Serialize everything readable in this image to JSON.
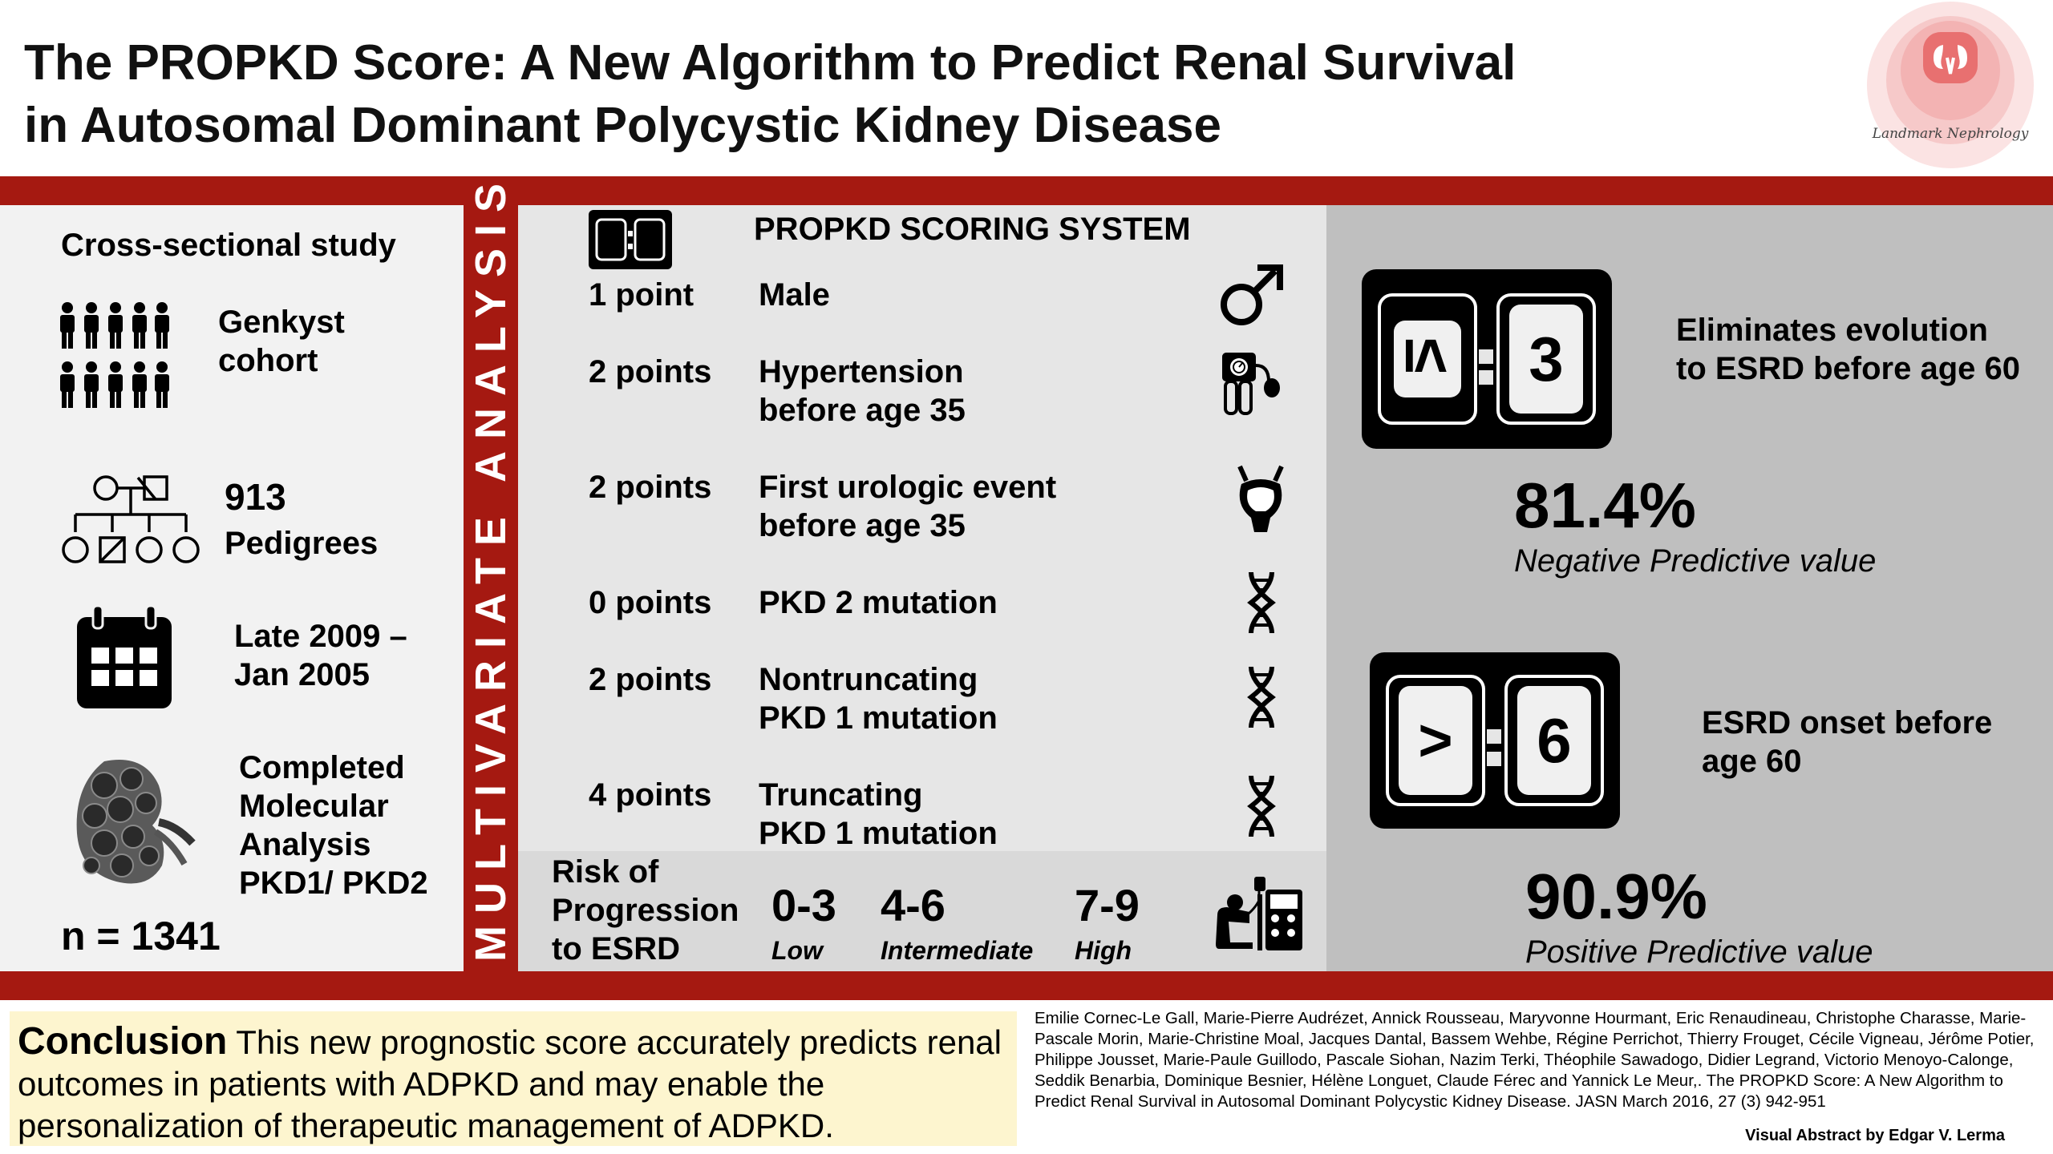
{
  "header": {
    "title_line1": "The PROPKD Score: A New Algorithm to Predict Renal Survival",
    "title_line2": "in Autosomal Dominant Polycystic Kidney Disease",
    "logo_text": "Landmark Nephrology"
  },
  "left": {
    "study_type": "Cross-sectional study",
    "cohort_line1": "Genkyst",
    "cohort_line2": "cohort",
    "pedigrees_count": "913",
    "pedigrees_label": "Pedigrees",
    "period_line1": "Late 2009 –",
    "period_line2": "Jan 2005",
    "analysis_line1": "Completed",
    "analysis_line2": "Molecular",
    "analysis_line3": "Analysis",
    "analysis_line4": "PKD1/ PKD2",
    "n_value": "n = 1341"
  },
  "vertical_label": "MULTIVARIATE ANALYSIS",
  "scoring": {
    "title": "PROPKD SCORING SYSTEM",
    "rows": [
      {
        "points": "1 point",
        "line1": "Male",
        "line2": "",
        "icon": "male-symbol-icon"
      },
      {
        "points": "2 points",
        "line1": "Hypertension",
        "line2": "before age 35",
        "icon": "blood-pressure-monitor-icon"
      },
      {
        "points": "2 points",
        "line1": "First urologic event",
        "line2": "before age 35",
        "icon": "bladder-icon"
      },
      {
        "points": "0 points",
        "line1": "PKD 2 mutation",
        "line2": "",
        "icon": "dna-icon"
      },
      {
        "points": "2 points",
        "line1": "Nontruncating",
        "line2": "PKD 1 mutation",
        "icon": "dna-icon"
      },
      {
        "points": "4 points",
        "line1": "Truncating",
        "line2": "PKD 1 mutation",
        "icon": "dna-icon"
      }
    ]
  },
  "risk": {
    "label_line1": "Risk of",
    "label_line2": "Progression",
    "label_line3": "to ESRD",
    "levels": [
      {
        "range": "0-3",
        "label": "Low"
      },
      {
        "range": "4-6",
        "label": "Intermediate"
      },
      {
        "range": "7-9",
        "label": "High"
      }
    ]
  },
  "results": {
    "low": {
      "symbol": "≤",
      "score": "3",
      "desc_line1": "Eliminates  evolution",
      "desc_line2": "to ESRD before age 60",
      "percent": "81.4%",
      "percent_label": "Negative Predictive value"
    },
    "high": {
      "symbol": ">",
      "score": "6",
      "desc_line1": "ESRD onset before",
      "desc_line2": "age 60",
      "percent": "90.9%",
      "percent_label": "Positive Predictive value"
    }
  },
  "conclusion": {
    "heading": "Conclusion",
    "text": " This new prognostic score accurately predicts renal outcomes in patients with ADPKD and may enable the personalization of therapeutic management of ADPKD."
  },
  "citation": "Emilie Cornec-Le Gall, Marie-Pierre Audrézet, Annick Rousseau, Maryvonne Hourmant, Eric Renaudineau, Christophe Charasse, Marie-Pascale Morin, Marie-Christine Moal, Jacques Dantal, Bassem Wehbe, Régine Perrichot, Thierry Frouget, Cécile Vigneau, Jérôme Potier, Philippe Jousset, Marie-Paule Guillodo, Pascale Siohan, Nazim Terki, Théophile Sawadogo, Didier Legrand, Victorio Menoyo-Calonge, Seddik Benarbia, Dominique Besnier, Hélène Longuet, Claude Férec and Yannick Le Meur,. The PROPKD Score: A New Algorithm to Predict Renal Survival in Autosomal Dominant Polycystic Kidney Disease. JASN March 2016, 27 (3) 942-951",
  "credit": "Visual Abstract by Edgar V. Lerma",
  "colors": {
    "band_red": "#a51911",
    "left_panel": "#f2f2f2",
    "middle_panel": "#e6e6e6",
    "right_panel": "#bfbfbf",
    "conclusion_bg": "#fdf5cf"
  }
}
